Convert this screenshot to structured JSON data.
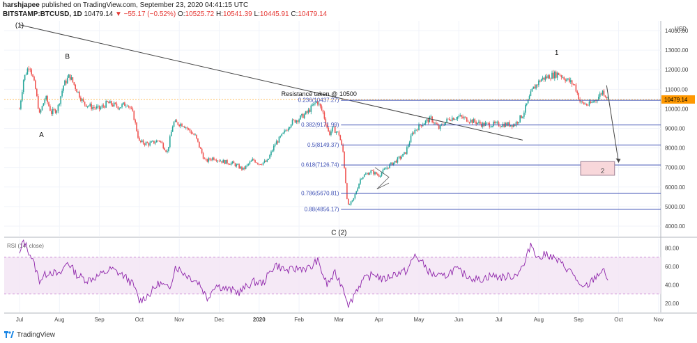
{
  "header": {
    "author": "harshjapee",
    "published": "published on TradingView.com, September 23, 2020 04:41:15 UTC",
    "symbol": "BITSTAMP:BTCUSD, 1D",
    "last": "10479.14",
    "change": "▼ −55.17 (−0.52%)",
    "o_label": "O:",
    "o_value": "10525.72",
    "h_label": "H:",
    "h_value": "10541.39",
    "l_label": "L:",
    "l_value": "10445.91",
    "c_label": "C:",
    "c_value": "10479.14"
  },
  "footer": {
    "brand": "TradingView",
    "logo_icon": "tradingview-logo-icon"
  },
  "chart_data": {
    "type": "candlestick",
    "currency": "USD",
    "last_price": "10479.14",
    "price_axis": {
      "ylim": [
        3500,
        14500
      ],
      "ticks": [
        "4000.00",
        "5000.00",
        "6000.00",
        "7000.00",
        "8000.00",
        "9000.00",
        "10000.00",
        "11000.00",
        "12000.00",
        "13000.00",
        "14000.00"
      ]
    },
    "time_axis": {
      "labels": [
        "Jul",
        "Aug",
        "Sep",
        "Oct",
        "Nov",
        "Dec",
        "2020",
        "Feb",
        "Mar",
        "Apr",
        "May",
        "Jun",
        "Jul",
        "Aug",
        "Sep",
        "Oct",
        "Nov"
      ],
      "month_index": [
        0,
        1,
        2,
        3,
        4,
        5,
        6,
        7,
        8,
        9,
        10,
        11,
        12,
        13,
        14,
        15,
        16
      ]
    },
    "monthly_path": [
      {
        "m": 0.0,
        "p": 10000
      },
      {
        "m": 0.1,
        "p": 11500
      },
      {
        "m": 0.25,
        "p": 12300
      },
      {
        "m": 0.4,
        "p": 11000
      },
      {
        "m": 0.5,
        "p": 9700
      },
      {
        "m": 0.65,
        "p": 10600
      },
      {
        "m": 0.8,
        "p": 9800
      },
      {
        "m": 0.95,
        "p": 10000
      },
      {
        "m": 1.1,
        "p": 11200
      },
      {
        "m": 1.25,
        "p": 11700
      },
      {
        "m": 1.45,
        "p": 10900
      },
      {
        "m": 1.6,
        "p": 10300
      },
      {
        "m": 1.8,
        "p": 10100
      },
      {
        "m": 2.0,
        "p": 10000
      },
      {
        "m": 2.2,
        "p": 10300
      },
      {
        "m": 2.5,
        "p": 10100
      },
      {
        "m": 2.7,
        "p": 10300
      },
      {
        "m": 2.85,
        "p": 9700
      },
      {
        "m": 3.0,
        "p": 8300
      },
      {
        "m": 3.25,
        "p": 8200
      },
      {
        "m": 3.5,
        "p": 8400
      },
      {
        "m": 3.7,
        "p": 7800
      },
      {
        "m": 3.85,
        "p": 9300
      },
      {
        "m": 4.1,
        "p": 9200
      },
      {
        "m": 4.4,
        "p": 8600
      },
      {
        "m": 4.65,
        "p": 7300
      },
      {
        "m": 4.85,
        "p": 7500
      },
      {
        "m": 5.1,
        "p": 7300
      },
      {
        "m": 5.35,
        "p": 7200
      },
      {
        "m": 5.6,
        "p": 6900
      },
      {
        "m": 5.85,
        "p": 7400
      },
      {
        "m": 6.0,
        "p": 7200
      },
      {
        "m": 6.2,
        "p": 7300
      },
      {
        "m": 6.4,
        "p": 8200
      },
      {
        "m": 6.6,
        "p": 8700
      },
      {
        "m": 6.8,
        "p": 9300
      },
      {
        "m": 7.0,
        "p": 9500
      },
      {
        "m": 7.2,
        "p": 9800
      },
      {
        "m": 7.45,
        "p": 10400
      },
      {
        "m": 7.6,
        "p": 9800
      },
      {
        "m": 7.75,
        "p": 8700
      },
      {
        "m": 7.85,
        "p": 9000
      },
      {
        "m": 8.0,
        "p": 8700
      },
      {
        "m": 8.1,
        "p": 7800
      },
      {
        "m": 8.22,
        "p": 5000
      },
      {
        "m": 8.35,
        "p": 5300
      },
      {
        "m": 8.55,
        "p": 6500
      },
      {
        "m": 8.8,
        "p": 6800
      },
      {
        "m": 9.0,
        "p": 6600
      },
      {
        "m": 9.2,
        "p": 7000
      },
      {
        "m": 9.4,
        "p": 7300
      },
      {
        "m": 9.65,
        "p": 7700
      },
      {
        "m": 9.85,
        "p": 8800
      },
      {
        "m": 10.05,
        "p": 9200
      },
      {
        "m": 10.3,
        "p": 9500
      },
      {
        "m": 10.5,
        "p": 9000
      },
      {
        "m": 10.75,
        "p": 9500
      },
      {
        "m": 11.0,
        "p": 9600
      },
      {
        "m": 11.3,
        "p": 9400
      },
      {
        "m": 11.6,
        "p": 9200
      },
      {
        "m": 11.9,
        "p": 9200
      },
      {
        "m": 12.1,
        "p": 9200
      },
      {
        "m": 12.4,
        "p": 9200
      },
      {
        "m": 12.6,
        "p": 9700
      },
      {
        "m": 12.85,
        "p": 11000
      },
      {
        "m": 13.05,
        "p": 11500
      },
      {
        "m": 13.3,
        "p": 11700
      },
      {
        "m": 13.5,
        "p": 11800
      },
      {
        "m": 13.7,
        "p": 11500
      },
      {
        "m": 13.9,
        "p": 11200
      },
      {
        "m": 14.05,
        "p": 10300
      },
      {
        "m": 14.25,
        "p": 10200
      },
      {
        "m": 14.45,
        "p": 10500
      },
      {
        "m": 14.6,
        "p": 10900
      },
      {
        "m": 14.75,
        "p": 10500
      }
    ],
    "fib_levels": [
      {
        "label": "0.236(10437.27)",
        "price": 10437.27
      },
      {
        "label": "0.382(9171.99)",
        "price": 9171.99
      },
      {
        "label": "0.5(8149.37)",
        "price": 8149.37
      },
      {
        "label": "0.618(7126.74)",
        "price": 7126.74
      },
      {
        "label": "0.786(5670.81)",
        "price": 5670.81
      },
      {
        "label": "0.88(4856.17)",
        "price": 4856.17
      }
    ],
    "annotations": [
      {
        "text": "(1)",
        "m": 0.0,
        "price": 14300
      },
      {
        "text": "B",
        "m": 1.2,
        "price": 12700
      },
      {
        "text": "A",
        "m": 0.55,
        "price": 8700
      },
      {
        "text": "Resistance taken @ 10500",
        "m": 7.5,
        "price": 10800
      },
      {
        "text": "1",
        "m": 13.45,
        "price": 12900
      },
      {
        "text": "C (2)",
        "m": 8.0,
        "price": 3700
      },
      {
        "text": "2",
        "m": 14.6,
        "price": 6850
      }
    ],
    "trendline": {
      "from": {
        "m": 0.0,
        "price": 14300
      },
      "to": {
        "m": 12.6,
        "price": 8400
      }
    },
    "target_box": {
      "m0": 14.05,
      "m1": 14.9,
      "p0": 7300,
      "p1": 6600
    },
    "rsi": {
      "label": "RSI (14, close)",
      "ylim": [
        10,
        90
      ],
      "ticks": [
        "20.00",
        "40.00",
        "60.00",
        "80.00"
      ],
      "band": [
        30,
        70
      ],
      "path": [
        {
          "m": 0.0,
          "v": 72
        },
        {
          "m": 0.1,
          "v": 88
        },
        {
          "m": 0.3,
          "v": 70
        },
        {
          "m": 0.5,
          "v": 45
        },
        {
          "m": 0.75,
          "v": 55
        },
        {
          "m": 1.0,
          "v": 50
        },
        {
          "m": 1.2,
          "v": 65
        },
        {
          "m": 1.45,
          "v": 50
        },
        {
          "m": 1.7,
          "v": 45
        },
        {
          "m": 2.0,
          "v": 50
        },
        {
          "m": 2.3,
          "v": 57
        },
        {
          "m": 2.6,
          "v": 50
        },
        {
          "m": 2.85,
          "v": 40
        },
        {
          "m": 3.0,
          "v": 22
        },
        {
          "m": 3.25,
          "v": 30
        },
        {
          "m": 3.5,
          "v": 42
        },
        {
          "m": 3.75,
          "v": 35
        },
        {
          "m": 3.9,
          "v": 60
        },
        {
          "m": 4.2,
          "v": 50
        },
        {
          "m": 4.5,
          "v": 42
        },
        {
          "m": 4.7,
          "v": 25
        },
        {
          "m": 4.9,
          "v": 40
        },
        {
          "m": 5.2,
          "v": 35
        },
        {
          "m": 5.5,
          "v": 32
        },
        {
          "m": 5.85,
          "v": 43
        },
        {
          "m": 6.1,
          "v": 42
        },
        {
          "m": 6.4,
          "v": 62
        },
        {
          "m": 6.7,
          "v": 55
        },
        {
          "m": 7.0,
          "v": 58
        },
        {
          "m": 7.3,
          "v": 58
        },
        {
          "m": 7.45,
          "v": 67
        },
        {
          "m": 7.7,
          "v": 40
        },
        {
          "m": 7.9,
          "v": 52
        },
        {
          "m": 8.1,
          "v": 38
        },
        {
          "m": 8.25,
          "v": 17
        },
        {
          "m": 8.4,
          "v": 32
        },
        {
          "m": 8.6,
          "v": 45
        },
        {
          "m": 8.9,
          "v": 52
        },
        {
          "m": 9.1,
          "v": 45
        },
        {
          "m": 9.4,
          "v": 52
        },
        {
          "m": 9.7,
          "v": 55
        },
        {
          "m": 9.9,
          "v": 72
        },
        {
          "m": 10.1,
          "v": 63
        },
        {
          "m": 10.3,
          "v": 52
        },
        {
          "m": 10.6,
          "v": 48
        },
        {
          "m": 10.9,
          "v": 57
        },
        {
          "m": 11.2,
          "v": 50
        },
        {
          "m": 11.5,
          "v": 45
        },
        {
          "m": 11.8,
          "v": 50
        },
        {
          "m": 12.1,
          "v": 48
        },
        {
          "m": 12.4,
          "v": 50
        },
        {
          "m": 12.65,
          "v": 62
        },
        {
          "m": 12.8,
          "v": 85
        },
        {
          "m": 13.0,
          "v": 68
        },
        {
          "m": 13.2,
          "v": 74
        },
        {
          "m": 13.5,
          "v": 65
        },
        {
          "m": 13.7,
          "v": 58
        },
        {
          "m": 13.9,
          "v": 50
        },
        {
          "m": 14.05,
          "v": 35
        },
        {
          "m": 14.25,
          "v": 40
        },
        {
          "m": 14.45,
          "v": 50
        },
        {
          "m": 14.6,
          "v": 56
        },
        {
          "m": 14.75,
          "v": 45
        }
      ]
    }
  }
}
